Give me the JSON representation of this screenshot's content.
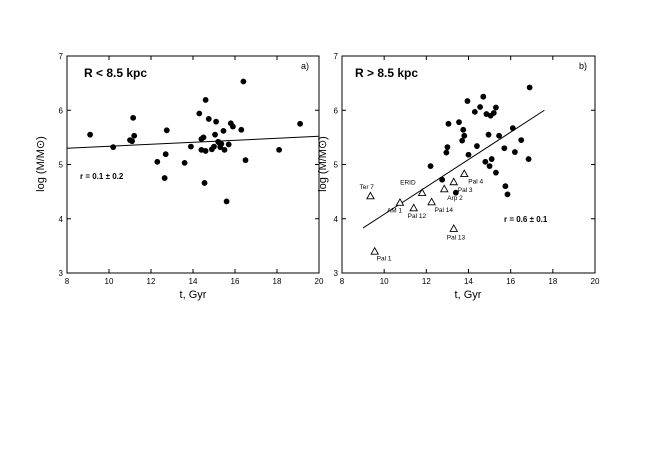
{
  "chart_data": [
    {
      "type": "scatter",
      "panel_label": "a)",
      "title": "R < 8.5 kpc",
      "xlabel": "t, Gyr",
      "ylabel": "log (M/M⊙)",
      "xlim": [
        8,
        20
      ],
      "ylim": [
        3,
        7
      ],
      "xticks": [
        8,
        10,
        12,
        14,
        16,
        18,
        20
      ],
      "yticks": [
        3,
        4,
        5,
        6,
        7
      ],
      "grid": false,
      "correlation_text": "r = 0.1 ± 0.2",
      "fit_line": {
        "x": [
          8,
          20
        ],
        "y": [
          5.3,
          5.52
        ]
      },
      "series": [
        {
          "marker": "filled-circle",
          "points": [
            [
              9.1,
              5.55
            ],
            [
              10.2,
              5.32
            ],
            [
              11.0,
              5.45
            ],
            [
              11.1,
              5.43
            ],
            [
              11.15,
              5.86
            ],
            [
              11.2,
              5.53
            ],
            [
              12.3,
              5.05
            ],
            [
              12.65,
              4.75
            ],
            [
              12.7,
              5.19
            ],
            [
              12.75,
              5.63
            ],
            [
              13.6,
              5.03
            ],
            [
              13.9,
              5.33
            ],
            [
              14.3,
              5.94
            ],
            [
              14.4,
              5.47
            ],
            [
              14.4,
              5.27
            ],
            [
              14.5,
              5.5
            ],
            [
              14.55,
              4.66
            ],
            [
              14.6,
              6.19
            ],
            [
              14.6,
              5.25
            ],
            [
              14.75,
              5.84
            ],
            [
              14.9,
              5.28
            ],
            [
              15.0,
              5.33
            ],
            [
              15.05,
              5.55
            ],
            [
              15.1,
              5.79
            ],
            [
              15.2,
              5.42
            ],
            [
              15.25,
              5.4
            ],
            [
              15.3,
              5.32
            ],
            [
              15.35,
              5.38
            ],
            [
              15.45,
              5.62
            ],
            [
              15.5,
              5.27
            ],
            [
              15.6,
              4.32
            ],
            [
              15.7,
              5.37
            ],
            [
              15.8,
              5.76
            ],
            [
              15.9,
              5.7
            ],
            [
              16.3,
              5.64
            ],
            [
              16.4,
              6.53
            ],
            [
              16.5,
              5.08
            ],
            [
              18.1,
              5.27
            ],
            [
              19.1,
              5.75
            ]
          ]
        }
      ]
    },
    {
      "type": "scatter",
      "panel_label": "b)",
      "title": "R > 8.5 kpc",
      "xlabel": "t, Gyr",
      "ylabel": "log (M/M⊙)",
      "xlim": [
        8,
        20
      ],
      "ylim": [
        3,
        7
      ],
      "xticks": [
        8,
        10,
        12,
        14,
        16,
        18,
        20
      ],
      "yticks": [
        3,
        4,
        5,
        6,
        7
      ],
      "grid": false,
      "correlation_text": "r = 0.6 ± 0.1",
      "fit_line": {
        "x": [
          9.0,
          17.6
        ],
        "y": [
          3.83,
          6.0
        ]
      },
      "series": [
        {
          "marker": "filled-circle",
          "points": [
            [
              12.2,
              4.97
            ],
            [
              12.75,
              4.72
            ],
            [
              12.95,
              5.22
            ],
            [
              13.0,
              5.32
            ],
            [
              13.05,
              5.75
            ],
            [
              13.4,
              4.48
            ],
            [
              13.55,
              5.78
            ],
            [
              13.7,
              5.44
            ],
            [
              13.75,
              5.64
            ],
            [
              13.8,
              5.53
            ],
            [
              13.95,
              6.17
            ],
            [
              14.0,
              5.18
            ],
            [
              14.3,
              5.97
            ],
            [
              14.4,
              5.34
            ],
            [
              14.55,
              6.06
            ],
            [
              14.7,
              6.25
            ],
            [
              14.8,
              5.05
            ],
            [
              14.85,
              5.93
            ],
            [
              14.95,
              5.55
            ],
            [
              15.0,
              4.97
            ],
            [
              15.05,
              5.9
            ],
            [
              15.1,
              5.1
            ],
            [
              15.2,
              5.95
            ],
            [
              15.3,
              6.05
            ],
            [
              15.3,
              4.85
            ],
            [
              15.45,
              5.53
            ],
            [
              15.7,
              5.3
            ],
            [
              15.75,
              4.6
            ],
            [
              15.85,
              4.45
            ],
            [
              16.1,
              5.67
            ],
            [
              16.2,
              5.23
            ],
            [
              16.5,
              5.45
            ],
            [
              16.85,
              5.1
            ],
            [
              16.9,
              6.42
            ]
          ]
        },
        {
          "marker": "open-triangle",
          "points": [
            {
              "x": 9.35,
              "y": 4.42,
              "label": "Ter 7"
            },
            {
              "x": 9.55,
              "y": 3.4,
              "label": "Pal 1"
            },
            {
              "x": 10.75,
              "y": 4.3,
              "label": "AM 1"
            },
            {
              "x": 11.4,
              "y": 4.2,
              "label": "Pal 12"
            },
            {
              "x": 11.8,
              "y": 4.48,
              "label": "ERID"
            },
            {
              "x": 12.25,
              "y": 4.31,
              "label": "Pal 14"
            },
            {
              "x": 12.85,
              "y": 4.55,
              "label": "Arp 2"
            },
            {
              "x": 13.3,
              "y": 3.82,
              "label": "Pal 13"
            },
            {
              "x": 13.3,
              "y": 4.68,
              "label": "Pal 3"
            },
            {
              "x": 13.8,
              "y": 4.83,
              "label": "Pal 4"
            }
          ]
        }
      ]
    }
  ]
}
